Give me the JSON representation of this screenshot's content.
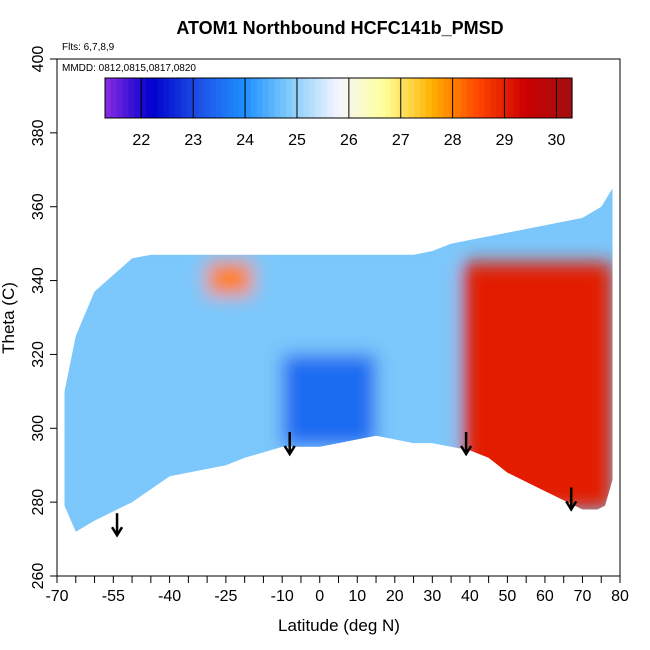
{
  "chart_data": {
    "type": "heatmap",
    "title": "ATOM1 Northbound HCFC141b_PMSD",
    "annotations": [
      "Flts: 6,7,8,9",
      "MMDD: 0812,0815,0817,0820"
    ],
    "xlabel": "Latitude (deg N)",
    "ylabel": "Theta (C)",
    "xlim": [
      -70,
      80
    ],
    "ylim": [
      260,
      400
    ],
    "x_ticks_labels": [
      -70,
      -55,
      -40,
      -25,
      -10,
      0,
      10,
      20,
      30,
      40,
      50,
      60,
      70,
      80
    ],
    "x_ticks_minor": [
      -65,
      -60,
      -50,
      -45,
      -35,
      -30,
      -20,
      -15,
      -5,
      5,
      15,
      25,
      35,
      45,
      55,
      65,
      75
    ],
    "y_ticks": [
      260,
      280,
      300,
      320,
      340,
      360,
      380,
      400
    ],
    "colorbar": {
      "range": [
        21.3,
        30.3
      ],
      "ticks": [
        22,
        23,
        24,
        25,
        26,
        27,
        28,
        29,
        30
      ],
      "colors": [
        "#8a2be2",
        "#0000cd",
        "#1e50e6",
        "#1e90ff",
        "#87cefa",
        "#f5f5ff",
        "#ffff99",
        "#ffb000",
        "#ff4500",
        "#cc0000",
        "#a01010"
      ]
    },
    "field_boundary": {
      "lat": [
        -68,
        -68,
        -65,
        -60,
        -50,
        -45,
        -40,
        -35,
        -30,
        -25,
        -20,
        -15,
        -10,
        -5,
        0,
        5,
        10,
        15,
        20,
        25,
        30,
        35,
        40,
        45,
        50,
        55,
        60,
        65,
        70,
        75,
        78,
        78,
        76,
        74,
        70,
        60,
        50,
        45,
        40,
        35,
        30,
        25,
        20,
        15,
        10,
        5,
        0,
        -5,
        -10,
        -20,
        -25,
        -30,
        -40,
        -50,
        -60,
        -65,
        -68
      ],
      "theta_top": [
        null
      ],
      "outline_theta": [
        279,
        310,
        325,
        337,
        346,
        347,
        347,
        347,
        347,
        347,
        347,
        347,
        347,
        347,
        347,
        347,
        347,
        347,
        347,
        347,
        348,
        350,
        351,
        352,
        353,
        354,
        355,
        356,
        357,
        360,
        365,
        286,
        279,
        278,
        278,
        283,
        288,
        292,
        294,
        295,
        296,
        296,
        297,
        298,
        297,
        296,
        295,
        295,
        295,
        292,
        290,
        289,
        287,
        280,
        275,
        272,
        279
      ]
    },
    "regions": [
      {
        "lat": [
          -68,
          35
        ],
        "theta": [
          272,
          347
        ],
        "value_approx": 24.8
      },
      {
        "lat": [
          -10,
          15
        ],
        "theta": [
          295,
          320
        ],
        "value_approx": 23.5
      },
      {
        "lat": [
          -30,
          -18
        ],
        "theta": [
          336,
          345
        ],
        "value_approx": 28.0
      },
      {
        "lat": [
          38,
          78
        ],
        "theta": [
          278,
          345
        ],
        "value_approx": 29.0
      }
    ],
    "markers": {
      "type": "arrow-down",
      "lat": [
        -54,
        -8,
        39,
        67
      ],
      "theta": [
        277,
        299,
        299,
        284
      ]
    },
    "grid": false,
    "legend_position": "top"
  }
}
